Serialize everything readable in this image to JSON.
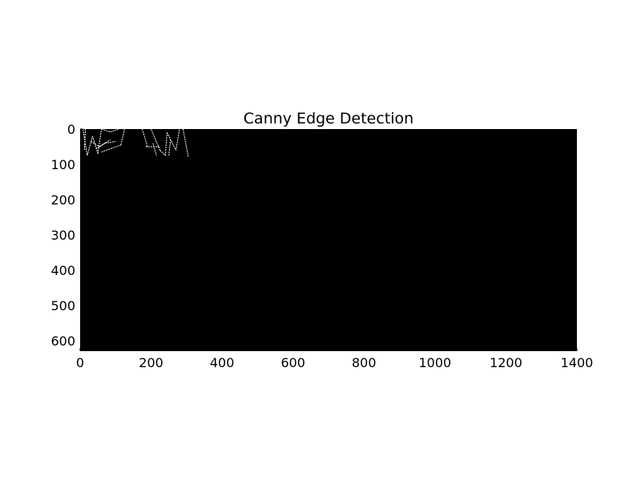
{
  "chart_data": {
    "type": "heatmap",
    "title": "Canny Edge Detection",
    "xlabel": "",
    "ylabel": "",
    "xlim": [
      0,
      1400
    ],
    "ylim": [
      630,
      0
    ],
    "xticks": [
      0,
      200,
      400,
      600,
      800,
      1000,
      1200,
      1400
    ],
    "xtick_labels": [
      "0",
      "200",
      "400",
      "600",
      "800",
      "1000",
      "1200",
      "1400"
    ],
    "yticks": [
      0,
      100,
      200,
      300,
      400,
      500,
      600
    ],
    "ytick_labels": [
      "0",
      "100",
      "200",
      "300",
      "400",
      "500",
      "600"
    ],
    "grid": false,
    "colormap": "gray",
    "background_color": "#000000",
    "edge_color": "#ffffff",
    "edges": [
      [
        [
          8,
          0
        ],
        [
          20,
          75
        ]
      ],
      [
        [
          20,
          75
        ],
        [
          35,
          20
        ]
      ],
      [
        [
          35,
          20
        ],
        [
          50,
          70
        ]
      ],
      [
        [
          50,
          70
        ],
        [
          60,
          0
        ]
      ],
      [
        [
          15,
          0
        ],
        [
          12,
          60
        ]
      ],
      [
        [
          30,
          35
        ],
        [
          55,
          50
        ]
      ],
      [
        [
          55,
          50
        ],
        [
          85,
          30
        ]
      ],
      [
        [
          45,
          55
        ],
        [
          70,
          40
        ]
      ],
      [
        [
          70,
          40
        ],
        [
          100,
          35
        ]
      ],
      [
        [
          60,
          65
        ],
        [
          115,
          45
        ]
      ],
      [
        [
          115,
          45
        ],
        [
          125,
          0
        ]
      ],
      [
        [
          85,
          8
        ],
        [
          110,
          0
        ]
      ],
      [
        [
          60,
          0
        ],
        [
          85,
          8
        ]
      ],
      [
        [
          175,
          0
        ],
        [
          190,
          50
        ]
      ],
      [
        [
          185,
          50
        ],
        [
          225,
          50
        ]
      ],
      [
        [
          200,
          0
        ],
        [
          225,
          60
        ]
      ],
      [
        [
          225,
          60
        ],
        [
          240,
          75
        ]
      ],
      [
        [
          240,
          75
        ],
        [
          245,
          10
        ]
      ],
      [
        [
          245,
          10
        ],
        [
          270,
          60
        ]
      ],
      [
        [
          270,
          60
        ],
        [
          280,
          0
        ]
      ],
      [
        [
          290,
          0
        ],
        [
          305,
          80
        ]
      ],
      [
        [
          205,
          40
        ],
        [
          215,
          75
        ]
      ],
      [
        [
          255,
          30
        ],
        [
          250,
          75
        ]
      ]
    ]
  }
}
